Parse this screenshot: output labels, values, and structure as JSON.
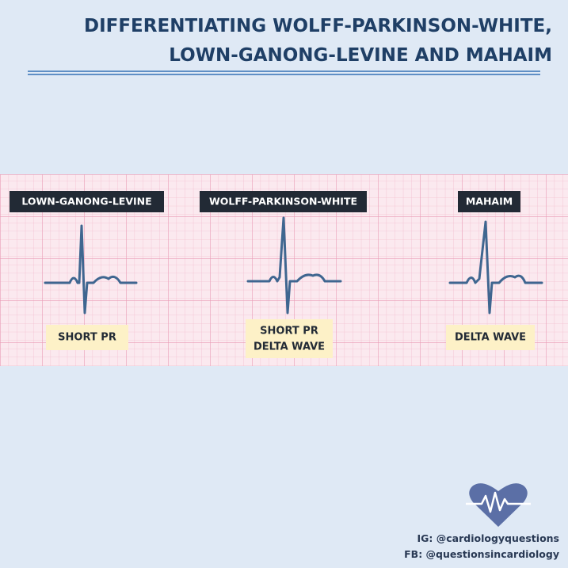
{
  "header": {
    "title_lines": [
      "DIFFERENTIATING WOLFF-PARKINSON-WHITE,",
      "LOWN-GANONG-LEVINE AND MAHAIM"
    ]
  },
  "panels": [
    {
      "label": "LOWN-GANONG-LEVINE",
      "notes": [
        "SHORT PR"
      ]
    },
    {
      "label": "WOLFF-PARKINSON-WHITE",
      "notes": [
        "SHORT PR",
        "DELTA WAVE"
      ]
    },
    {
      "label": "MAHAIM",
      "notes": [
        "DELTA WAVE"
      ]
    }
  ],
  "footer": {
    "lines": [
      "IG: @cardiologyquestions",
      "FB: @questionsincardiology"
    ]
  }
}
